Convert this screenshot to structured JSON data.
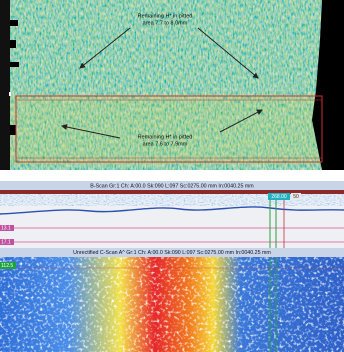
{
  "top_panel": {
    "annotation_upper": [
      "Remaining H* in pitted",
      "area 7.7 to 8.0mm"
    ],
    "annotation_lower": [
      "Remaining H* in pitted",
      "area 7.6 to 7.9mm"
    ]
  },
  "bscan": {
    "header": "B-Scan Gr:1 Ch: A:00.0 Sk:090 L:097 Sc:0275.00 mm In:0040.25 mm",
    "cursor_label": "268.00",
    "cursor_label_2": "50",
    "left_labels": [
      "13.1",
      "17.1"
    ]
  },
  "cscan": {
    "header": "Unrectified C-Scan A^ Gr:1 Ch: A:00.0 Sk:090 L:097 Sc:0275.00 mm In:0040.25 mm",
    "left_label": "112.5"
  }
}
